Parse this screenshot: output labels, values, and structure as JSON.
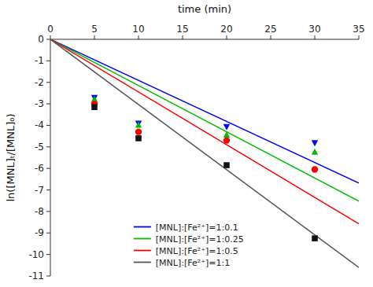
{
  "chart_data": {
    "type": "scatter",
    "x_label": "time (min)",
    "y_label": "ln([MNL]ₜ/[MNL]₀)",
    "xlim": [
      0,
      35
    ],
    "ylim": [
      -11,
      0
    ],
    "xticks": [
      0,
      5,
      10,
      15,
      20,
      25,
      30,
      35
    ],
    "yticks": [
      0,
      -1,
      -2,
      -3,
      -4,
      -5,
      -6,
      -7,
      -8,
      -9,
      -10,
      -11
    ],
    "grid": false,
    "legend": "lower left",
    "series": [
      {
        "name": "[MNL]:[Fe²⁺]=1:0.1",
        "type": "line",
        "color": "#0000ff",
        "x": [
          0,
          35
        ],
        "values": [
          0,
          -6.685
        ]
      },
      {
        "name": "[MNL]:[Fe²⁺]=1:0.25",
        "type": "line",
        "color": "#00bb00",
        "x": [
          0,
          35
        ],
        "values": [
          0,
          -7.525
        ]
      },
      {
        "name": "[MNL]:[Fe²⁺]=1:0.5",
        "type": "line",
        "color": "#ff0000",
        "x": [
          0,
          35
        ],
        "values": [
          0,
          -8.575
        ]
      },
      {
        "name": "[MNL]:[Fe²⁺]=1:1",
        "type": "line",
        "color": "#555555",
        "x": [
          0,
          35
        ],
        "values": [
          0,
          -10.605
        ]
      },
      {
        "type": "scatter",
        "marker": "triangle-down",
        "color": "#0000ff",
        "x": [
          5,
          10,
          20,
          30
        ],
        "values": [
          -2.7,
          -3.9,
          -4.05,
          -4.8
        ]
      },
      {
        "type": "scatter",
        "marker": "triangle-up",
        "color": "#00bb00",
        "x": [
          5,
          10,
          20,
          30
        ],
        "values": [
          -2.8,
          -4.0,
          -4.45,
          -5.25
        ]
      },
      {
        "type": "scatter",
        "marker": "circle",
        "color": "#ff0000",
        "x": [
          5,
          10,
          20,
          30
        ],
        "values": [
          -3.0,
          -4.3,
          -4.7,
          -6.05
        ]
      },
      {
        "type": "scatter",
        "marker": "square",
        "color": "#111111",
        "x": [
          5,
          10,
          20,
          30
        ],
        "values": [
          -3.15,
          -4.6,
          -5.85,
          -9.25
        ]
      }
    ]
  }
}
